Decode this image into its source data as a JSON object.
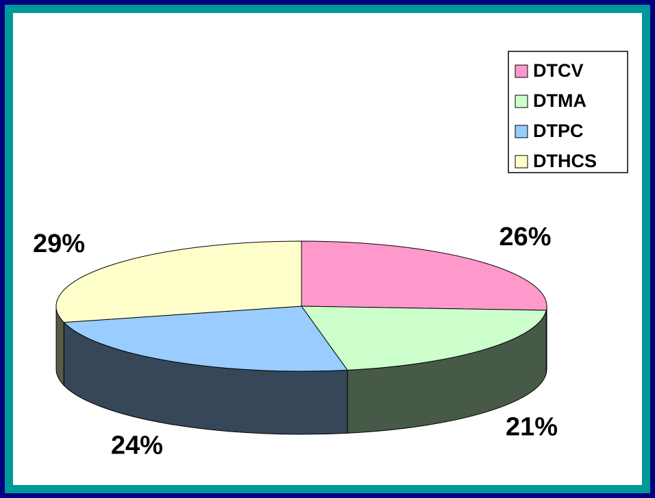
{
  "chart_data": {
    "type": "pie3d",
    "categories": [
      "DTCV",
      "DTMA",
      "DTPC",
      "DTHCS"
    ],
    "values": [
      26,
      21,
      24,
      29
    ],
    "value_labels": [
      "26%",
      "21%",
      "24%",
      "29%"
    ],
    "colors": [
      "#ff99cc",
      "#ccffcc",
      "#99ccff",
      "#ffffcc"
    ],
    "legend": "top-right"
  }
}
